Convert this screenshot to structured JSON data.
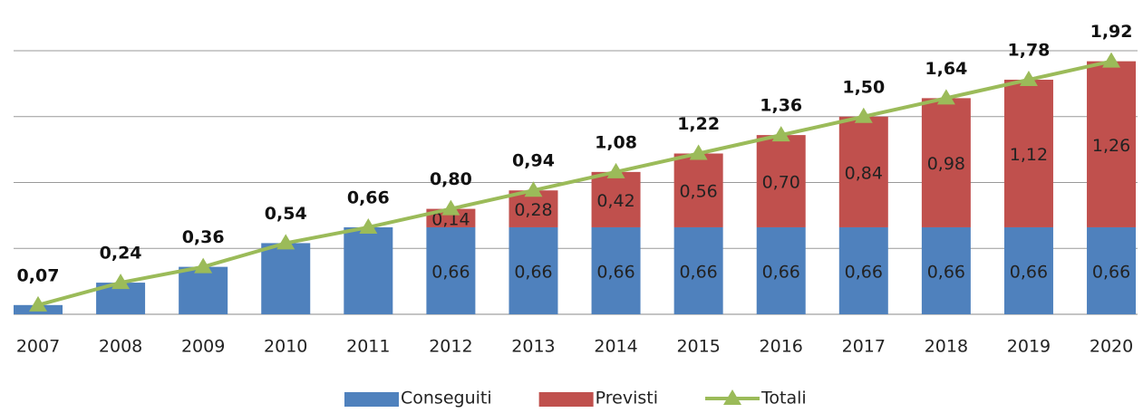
{
  "chart_data": {
    "type": "bar-line",
    "categories": [
      "2007",
      "2008",
      "2009",
      "2010",
      "2011",
      "2012",
      "2013",
      "2014",
      "2015",
      "2016",
      "2017",
      "2018",
      "2019",
      "2020"
    ],
    "series": [
      {
        "name": "Conseguiti",
        "type": "bar",
        "color": "#4f81bd",
        "values": [
          0.07,
          0.24,
          0.36,
          0.54,
          0.66,
          0.66,
          0.66,
          0.66,
          0.66,
          0.66,
          0.66,
          0.66,
          0.66,
          0.66
        ],
        "value_labels": [
          null,
          null,
          null,
          null,
          null,
          "0,66",
          "0,66",
          "0,66",
          "0,66",
          "0,66",
          "0,66",
          "0,66",
          "0,66",
          "0,66"
        ]
      },
      {
        "name": "Previsti",
        "type": "bar",
        "color": "#c0504d",
        "values": [
          null,
          null,
          null,
          null,
          null,
          0.14,
          0.28,
          0.42,
          0.56,
          0.7,
          0.84,
          0.98,
          1.12,
          1.26
        ],
        "value_labels": [
          null,
          null,
          null,
          null,
          null,
          "0,14",
          "0,28",
          "0,42",
          "0,56",
          "0,70",
          "0,84",
          "0,98",
          "1,12",
          "1,26"
        ]
      },
      {
        "name": "Totali",
        "type": "line",
        "color": "#9bbb59",
        "values": [
          0.07,
          0.24,
          0.36,
          0.54,
          0.66,
          0.8,
          0.94,
          1.08,
          1.22,
          1.36,
          1.5,
          1.64,
          1.78,
          1.92
        ],
        "value_labels": [
          "0,07",
          "0,24",
          "0,36",
          "0,54",
          "0,66",
          "0,80",
          "0,94",
          "1,08",
          "1,22",
          "1,36",
          "1,50",
          "1,64",
          "1,78",
          "1,92"
        ]
      }
    ],
    "ylim": [
      0,
      2
    ],
    "yticks": [
      0,
      0.5,
      1,
      1.5,
      2
    ],
    "grid": true
  }
}
